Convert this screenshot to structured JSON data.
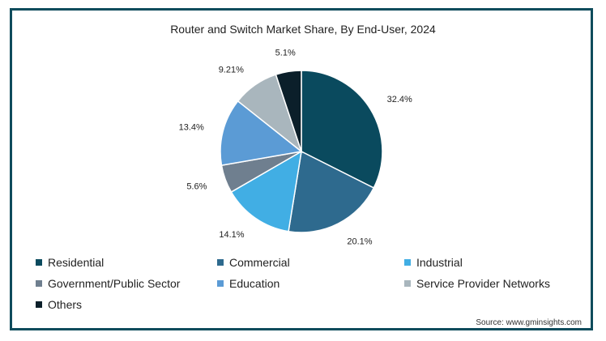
{
  "chart_data": {
    "type": "pie",
    "title": "Router and Switch Market Share, By End-User, 2024",
    "slices": [
      {
        "name": "Residential",
        "value": 32.4,
        "label": "32.4%",
        "color": "#0a4a5e"
      },
      {
        "name": "Commercial",
        "value": 20.1,
        "label": "20.1%",
        "color": "#2e6a8e"
      },
      {
        "name": "Industrial",
        "value": 14.1,
        "label": "14.1%",
        "color": "#41aee4"
      },
      {
        "name": "Government/Public Sector",
        "value": 5.6,
        "label": "5.6%",
        "color": "#6f7f8f"
      },
      {
        "name": "Education",
        "value": 13.4,
        "label": "13.4%",
        "color": "#5b9bd5"
      },
      {
        "name": "Service Provider Networks",
        "value": 9.21,
        "label": "9.21%",
        "color": "#a9b6bd"
      },
      {
        "name": "Others",
        "value": 5.1,
        "label": "5.1%",
        "color": "#0b1f2a"
      }
    ],
    "legend_placement": "bottom"
  },
  "source": "Source: www.gminsights.com"
}
